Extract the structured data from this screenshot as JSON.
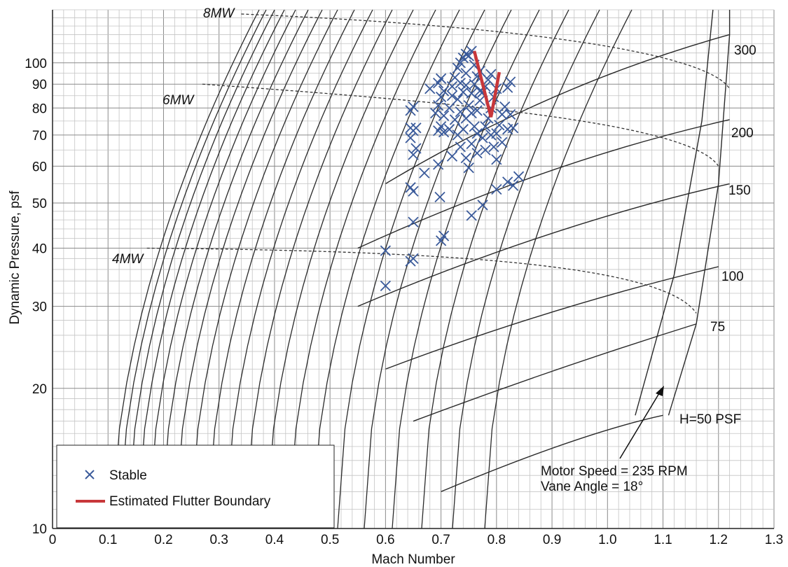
{
  "chart_data": {
    "type": "scatter",
    "title": "",
    "xlabel": "Mach Number",
    "ylabel": "Dynamic Pressure, psf",
    "xlim": [
      0,
      1.3
    ],
    "ylim": [
      10,
      130
    ],
    "y_scale": "log",
    "grid": true,
    "x_ticks": [
      "0",
      "0.1",
      "0.2",
      "0.3",
      "0.4",
      "0.5",
      "0.6",
      "0.7",
      "0.8",
      "0.9",
      "1.0",
      "1.1",
      "1.2",
      "1.3"
    ],
    "x_tick_values": [
      0,
      0.1,
      0.2,
      0.3,
      0.4,
      0.5,
      0.6,
      0.7,
      0.8,
      0.9,
      1.0,
      1.1,
      1.2,
      1.3
    ],
    "y_ticks": [
      "10",
      "20",
      "30",
      "40",
      "50",
      "60",
      "70",
      "80",
      "90",
      "100"
    ],
    "y_tick_values": [
      10,
      20,
      30,
      40,
      50,
      60,
      70,
      80,
      90,
      100
    ],
    "legend": {
      "placement": "bottom-left",
      "entries": [
        {
          "label": "Stable",
          "marker": "x",
          "color": "#3a5a9a"
        },
        {
          "label": "Estimated Flutter Boundary",
          "marker": "line",
          "color": "#c8373a"
        }
      ]
    },
    "series": [
      {
        "name": "Stable",
        "marker": "x",
        "color": "#3a5a9a",
        "points": [
          [
            0.6,
            39.5
          ],
          [
            0.6,
            33.2
          ],
          [
            0.645,
            37.5
          ],
          [
            0.65,
            38.0
          ],
          [
            0.65,
            45.5
          ],
          [
            0.645,
            54.0
          ],
          [
            0.65,
            53.0
          ],
          [
            0.65,
            63.5
          ],
          [
            0.655,
            65.5
          ],
          [
            0.645,
            69.0
          ],
          [
            0.645,
            72.5
          ],
          [
            0.65,
            71.5
          ],
          [
            0.655,
            72.5
          ],
          [
            0.645,
            79.0
          ],
          [
            0.65,
            80.5
          ],
          [
            0.67,
            58.0
          ],
          [
            0.695,
            60.5
          ],
          [
            0.698,
            51.5
          ],
          [
            0.7,
            41.5
          ],
          [
            0.705,
            42.5
          ],
          [
            0.695,
            71.5
          ],
          [
            0.7,
            73.0
          ],
          [
            0.705,
            71.0
          ],
          [
            0.69,
            78.0
          ],
          [
            0.695,
            81.0
          ],
          [
            0.7,
            84.5
          ],
          [
            0.705,
            87.0
          ],
          [
            0.695,
            90.5
          ],
          [
            0.7,
            92.5
          ],
          [
            0.68,
            88.0
          ],
          [
            0.715,
            80.0
          ],
          [
            0.72,
            85.0
          ],
          [
            0.72,
            89.0
          ],
          [
            0.725,
            93.0
          ],
          [
            0.73,
            97.5
          ],
          [
            0.735,
            100.0
          ],
          [
            0.74,
            102.5
          ],
          [
            0.745,
            104.5
          ],
          [
            0.75,
            103.5
          ],
          [
            0.755,
            106.0
          ],
          [
            0.72,
            63.0
          ],
          [
            0.73,
            70.0
          ],
          [
            0.735,
            66.0
          ],
          [
            0.74,
            72.0
          ],
          [
            0.745,
            76.0
          ],
          [
            0.75,
            81.0
          ],
          [
            0.755,
            86.0
          ],
          [
            0.76,
            90.0
          ],
          [
            0.765,
            93.5
          ],
          [
            0.77,
            96.0
          ],
          [
            0.745,
            62.5
          ],
          [
            0.75,
            59.5
          ],
          [
            0.755,
            67.0
          ],
          [
            0.76,
            73.0
          ],
          [
            0.765,
            79.0
          ],
          [
            0.77,
            83.0
          ],
          [
            0.775,
            86.5
          ],
          [
            0.78,
            89.0
          ],
          [
            0.785,
            92.0
          ],
          [
            0.79,
            94.5
          ],
          [
            0.73,
            83.5
          ],
          [
            0.74,
            86.5
          ],
          [
            0.745,
            89.5
          ],
          [
            0.735,
            78.5
          ],
          [
            0.725,
            75.5
          ],
          [
            0.755,
            47.0
          ],
          [
            0.775,
            49.5
          ],
          [
            0.765,
            64.0
          ],
          [
            0.775,
            69.0
          ],
          [
            0.78,
            73.0
          ],
          [
            0.785,
            76.0
          ],
          [
            0.79,
            80.0
          ],
          [
            0.795,
            84.5
          ],
          [
            0.8,
            88.0
          ],
          [
            0.795,
            66.0
          ],
          [
            0.8,
            70.5
          ],
          [
            0.805,
            73.5
          ],
          [
            0.81,
            77.5
          ],
          [
            0.815,
            80.5
          ],
          [
            0.82,
            72.0
          ],
          [
            0.825,
            77.5
          ],
          [
            0.82,
            88.5
          ],
          [
            0.825,
            91.0
          ],
          [
            0.83,
            72.5
          ],
          [
            0.8,
            53.5
          ],
          [
            0.82,
            55.5
          ],
          [
            0.83,
            54.5
          ],
          [
            0.84,
            57.0
          ],
          [
            0.705,
            77.0
          ],
          [
            0.715,
            72.0
          ],
          [
            0.76,
            99.0
          ],
          [
            0.745,
            95.0
          ],
          [
            0.755,
            78.0
          ],
          [
            0.765,
            70.5
          ],
          [
            0.81,
            67.5
          ],
          [
            0.79,
            70.0
          ],
          [
            0.78,
            65.0
          ],
          [
            0.8,
            62.0
          ],
          [
            0.77,
            87.0
          ],
          [
            0.735,
            90.5
          ]
        ]
      },
      {
        "name": "Estimated Flutter Boundary",
        "marker": "line",
        "color": "#c8373a",
        "points": [
          [
            0.76,
            106.0
          ],
          [
            0.79,
            76.5
          ],
          [
            0.805,
            95.5
          ]
        ]
      }
    ],
    "curve_labels": {
      "dynamic_pressure_lines": [
        "H=50 PSF",
        "75",
        "100",
        "150",
        "200",
        "300"
      ],
      "power_lines": [
        "4MW",
        "6MW",
        "8MW"
      ]
    },
    "annotation": {
      "line1": "Motor Speed = 235 RPM",
      "line2": "Vane Angle = 18°"
    }
  }
}
